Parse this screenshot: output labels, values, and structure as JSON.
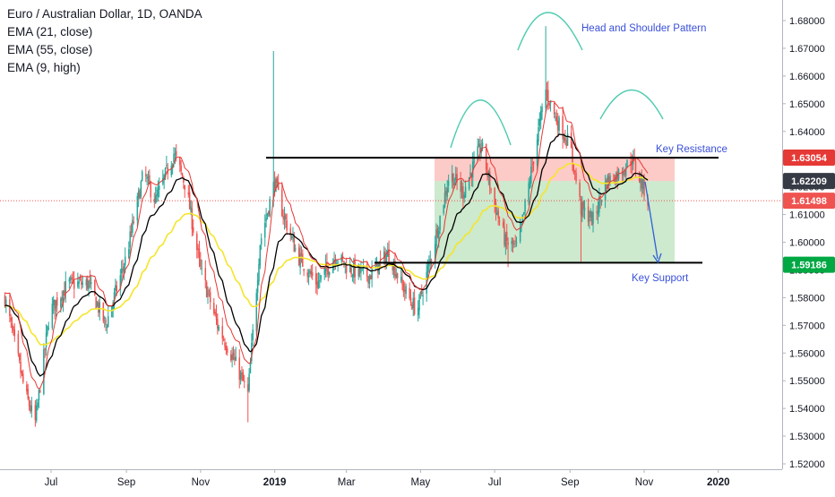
{
  "legend": {
    "symbol": "Euro / Australian Dollar, 1D, OANDA",
    "ema1": "EMA (21, close)",
    "ema2": "EMA (55, close)",
    "ema3": "EMA (9, high)"
  },
  "annotations": {
    "pattern": "Head and Shoulder Pattern",
    "resistance": "Key Resistance",
    "support": "Key Support"
  },
  "price_tags": [
    {
      "label": "1.63054",
      "value": 1.63054,
      "color": "#e53935"
    },
    {
      "label": "1.62209",
      "value": 1.62209,
      "color": "#363a45"
    },
    {
      "label": "1.61498",
      "value": 1.61498,
      "color": "#ef5350"
    },
    {
      "label": "1.59186",
      "value": 1.59186,
      "color": "#00a843"
    }
  ],
  "colors": {
    "up": "#26a69a",
    "down": "#ef5350",
    "ema21": "#000000",
    "ema55": "#f5e52c",
    "ema9": "#e53935",
    "annotation": "#3a50d9",
    "arc": "#4ecbb0"
  },
  "chart_data": {
    "type": "candlestick",
    "title": "Euro / Australian Dollar, 1D, OANDA",
    "x_tick_labels": [
      "Jul",
      "Sep",
      "Nov",
      "2019",
      "Mar",
      "May",
      "Jul",
      "Sep",
      "Nov",
      "2020"
    ],
    "y_tick_labels": [
      "1.52000",
      "1.53000",
      "1.54000",
      "1.55000",
      "1.56000",
      "1.57000",
      "1.58000",
      "1.59000",
      "1.60000",
      "1.61000",
      "1.62000",
      "1.63000",
      "1.64000",
      "1.65000",
      "1.66000",
      "1.67000",
      "1.68000"
    ],
    "ylim": [
      1.5187,
      1.6862
    ],
    "resistance_level": 1.6305,
    "support_level": 1.5926,
    "current_price": 1.61498,
    "close_path": [
      {
        "date": "2018-05-24",
        "close": 1.58
      },
      {
        "date": "2018-06-10",
        "close": 1.545
      },
      {
        "date": "2018-06-18",
        "close": 1.535
      },
      {
        "date": "2018-06-30",
        "close": 1.575
      },
      {
        "date": "2018-07-15",
        "close": 1.585
      },
      {
        "date": "2018-08-01",
        "close": 1.585
      },
      {
        "date": "2018-08-15",
        "close": 1.57
      },
      {
        "date": "2018-09-01",
        "close": 1.595
      },
      {
        "date": "2018-09-15",
        "close": 1.625
      },
      {
        "date": "2018-09-25",
        "close": 1.615
      },
      {
        "date": "2018-10-10",
        "close": 1.632
      },
      {
        "date": "2018-10-20",
        "close": 1.62
      },
      {
        "date": "2018-11-01",
        "close": 1.59
      },
      {
        "date": "2018-11-15",
        "close": 1.57
      },
      {
        "date": "2018-12-01",
        "close": 1.555
      },
      {
        "date": "2018-12-10",
        "close": 1.545
      },
      {
        "date": "2018-12-20",
        "close": 1.6
      },
      {
        "date": "2019-01-01",
        "close": 1.622
      },
      {
        "date": "2019-01-08",
        "close": 1.61
      },
      {
        "date": "2019-01-20",
        "close": 1.595
      },
      {
        "date": "2019-02-05",
        "close": 1.585
      },
      {
        "date": "2019-02-20",
        "close": 1.595
      },
      {
        "date": "2019-03-05",
        "close": 1.59
      },
      {
        "date": "2019-03-20",
        "close": 1.588
      },
      {
        "date": "2019-04-05",
        "close": 1.596
      },
      {
        "date": "2019-04-15",
        "close": 1.585
      },
      {
        "date": "2019-04-28",
        "close": 1.575
      },
      {
        "date": "2019-05-10",
        "close": 1.595
      },
      {
        "date": "2019-05-25",
        "close": 1.625
      },
      {
        "date": "2019-06-05",
        "close": 1.618
      },
      {
        "date": "2019-06-20",
        "close": 1.635
      },
      {
        "date": "2019-06-30",
        "close": 1.615
      },
      {
        "date": "2019-07-10",
        "close": 1.6
      },
      {
        "date": "2019-07-20",
        "close": 1.598
      },
      {
        "date": "2019-08-01",
        "close": 1.628
      },
      {
        "date": "2019-08-12",
        "close": 1.655
      },
      {
        "date": "2019-08-20",
        "close": 1.645
      },
      {
        "date": "2019-09-01",
        "close": 1.635
      },
      {
        "date": "2019-09-10",
        "close": 1.612
      },
      {
        "date": "2019-09-20",
        "close": 1.608
      },
      {
        "date": "2019-10-01",
        "close": 1.622
      },
      {
        "date": "2019-10-12",
        "close": 1.625
      },
      {
        "date": "2019-10-22",
        "close": 1.63
      },
      {
        "date": "2019-10-31",
        "close": 1.62
      },
      {
        "date": "2019-11-04",
        "close": 1.615
      }
    ]
  }
}
